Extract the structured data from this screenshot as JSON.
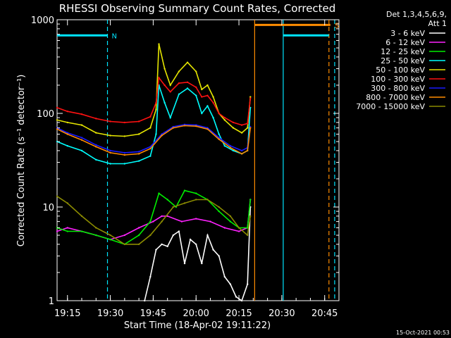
{
  "chart_data": {
    "type": "line",
    "title": "RHESSI Observing Summary Count Rates, Corrected",
    "xlabel": "Start Time (18-Apr-02 19:11:22)",
    "ylabel": "Corrected Count Rate (s⁻¹ detector⁻¹)",
    "yscale": "log",
    "ylim": [
      1,
      1000
    ],
    "xlim": [
      "19:11:22",
      "20:50:00"
    ],
    "x_ticks": [
      "19:15",
      "19:30",
      "19:45",
      "20:00",
      "20:15",
      "20:30",
      "20:45"
    ],
    "y_ticks": [
      "1",
      "10",
      "100",
      "1000"
    ],
    "footer": "15-Oct-2021 00:53",
    "legend": {
      "header": "Det 1,3,4,5,6,9,",
      "header2": "Att 1",
      "placement": "right"
    },
    "flags": [
      {
        "label": "N",
        "color": "#00e5ff",
        "start": "19:11:22",
        "end": "19:29:00",
        "level": 680
      },
      {
        "label": "S",
        "color": "#ff8c00",
        "start": "20:20:30",
        "end": "20:47:00",
        "level": 880
      },
      {
        "label": "",
        "color": "#00e5ff",
        "start": "20:30:30",
        "end": "20:46:30",
        "level": 680
      }
    ],
    "markers": [
      {
        "time": "19:29:00",
        "color": "#00e5ff",
        "style": "dashed"
      },
      {
        "time": "20:20:30",
        "color": "#ff8c00",
        "style": "solid"
      },
      {
        "time": "20:30:30",
        "color": "#00e5ff",
        "style": "solid"
      },
      {
        "time": "20:46:30",
        "color": "#ff8c00",
        "style": "dashed"
      },
      {
        "time": "20:48:30",
        "color": "#00e5ff",
        "style": "dashed"
      }
    ],
    "series": [
      {
        "name": "3 - 6 keV",
        "color": "#ffffff",
        "x": [
          "19:42",
          "19:44",
          "19:46",
          "19:48",
          "19:50",
          "19:52",
          "19:54",
          "19:56",
          "19:58",
          "20:00",
          "20:02",
          "20:04",
          "20:06",
          "20:08",
          "20:10",
          "20:12",
          "20:14",
          "20:16",
          "20:18",
          "20:19"
        ],
        "values": [
          1.0,
          1.8,
          3.5,
          4.0,
          3.8,
          5.0,
          5.5,
          2.5,
          4.5,
          4.0,
          2.5,
          5.0,
          3.5,
          3.0,
          1.8,
          1.5,
          1.1,
          1.0,
          1.5,
          10
        ]
      },
      {
        "name": "6 - 12 keV",
        "color": "#ff22ff",
        "x": [
          "19:11:22",
          "19:15",
          "19:20",
          "19:25",
          "19:30",
          "19:35",
          "19:40",
          "19:45",
          "19:48",
          "19:50",
          "19:55",
          "20:00",
          "20:05",
          "20:10",
          "20:15",
          "20:18",
          "20:19"
        ],
        "values": [
          5.5,
          6.0,
          5.5,
          5.0,
          4.5,
          5.0,
          6.0,
          7.0,
          8.0,
          8.0,
          7.0,
          7.5,
          7.0,
          6.0,
          5.5,
          6.0,
          12
        ]
      },
      {
        "name": "12 - 25 keV",
        "color": "#00ee00",
        "x": [
          "19:11:22",
          "19:15",
          "19:20",
          "19:25",
          "19:30",
          "19:35",
          "19:40",
          "19:44",
          "19:47",
          "19:50",
          "19:53",
          "19:56",
          "20:00",
          "20:04",
          "20:08",
          "20:12",
          "20:15",
          "20:18",
          "20:19"
        ],
        "values": [
          6.0,
          5.5,
          5.5,
          5.0,
          4.5,
          4.0,
          5.0,
          7.0,
          14,
          12,
          10,
          15,
          14,
          12,
          9,
          7,
          6,
          6,
          12
        ]
      },
      {
        "name": "25 - 50 keV",
        "color": "#00ffff",
        "x": [
          "19:11:22",
          "19:15",
          "19:20",
          "19:25",
          "19:30",
          "19:35",
          "19:40",
          "19:44",
          "19:46",
          "19:47",
          "19:49",
          "19:51",
          "19:54",
          "19:57",
          "20:00",
          "20:02",
          "20:04",
          "20:06",
          "20:08",
          "20:10",
          "20:13",
          "20:16",
          "20:18",
          "20:19"
        ],
        "values": [
          50,
          45,
          40,
          32,
          29,
          29,
          31,
          35,
          60,
          200,
          130,
          90,
          160,
          185,
          155,
          100,
          120,
          90,
          60,
          45,
          40,
          37,
          40,
          115
        ]
      },
      {
        "name": "50 - 100 keV",
        "color": "#e6e600",
        "x": [
          "19:11:22",
          "19:15",
          "19:20",
          "19:25",
          "19:30",
          "19:35",
          "19:40",
          "19:44",
          "19:46",
          "19:47",
          "19:49",
          "19:51",
          "19:54",
          "19:57",
          "20:00",
          "20:02",
          "20:04",
          "20:06",
          "20:08",
          "20:10",
          "20:13",
          "20:16",
          "20:18",
          "20:19"
        ],
        "values": [
          85,
          80,
          75,
          62,
          58,
          57,
          60,
          70,
          110,
          550,
          300,
          200,
          280,
          350,
          280,
          180,
          200,
          150,
          100,
          85,
          70,
          62,
          70,
          150
        ]
      },
      {
        "name": "100 - 300 keV",
        "color": "#ff1111",
        "x": [
          "19:11:22",
          "19:15",
          "19:20",
          "19:25",
          "19:30",
          "19:35",
          "19:40",
          "19:44",
          "19:46",
          "19:47",
          "19:49",
          "19:51",
          "19:54",
          "19:57",
          "20:00",
          "20:02",
          "20:04",
          "20:06",
          "20:08",
          "20:10",
          "20:13",
          "20:16",
          "20:18",
          "20:19"
        ],
        "values": [
          115,
          105,
          98,
          88,
          82,
          80,
          82,
          92,
          130,
          240,
          200,
          170,
          210,
          215,
          190,
          150,
          155,
          130,
          100,
          90,
          80,
          75,
          78,
          145
        ]
      },
      {
        "name": "300 - 800 keV",
        "color": "#1a1aff",
        "x": [
          "19:11:22",
          "19:15",
          "19:20",
          "19:25",
          "19:30",
          "19:35",
          "19:40",
          "19:44",
          "19:48",
          "19:52",
          "19:56",
          "20:00",
          "20:04",
          "20:08",
          "20:12",
          "20:16",
          "20:18",
          "20:19"
        ],
        "values": [
          70,
          62,
          55,
          46,
          40,
          38,
          39,
          44,
          60,
          72,
          76,
          75,
          70,
          55,
          45,
          40,
          43,
          72
        ]
      },
      {
        "name": "800 - 7000 keV",
        "color": "#ff8c00",
        "x": [
          "19:11:22",
          "19:15",
          "19:20",
          "19:25",
          "19:30",
          "19:35",
          "19:40",
          "19:44",
          "19:48",
          "19:52",
          "19:56",
          "20:00",
          "20:04",
          "20:08",
          "20:12",
          "20:16",
          "20:18",
          "20:19"
        ],
        "values": [
          68,
          60,
          52,
          44,
          38,
          36,
          37,
          42,
          58,
          70,
          74,
          73,
          68,
          53,
          43,
          37,
          40,
          70
        ]
      },
      {
        "name": "7000 - 15000 keV",
        "color": "#8b8b00",
        "x": [
          "19:11:22",
          "19:15",
          "19:20",
          "19:25",
          "19:30",
          "19:35",
          "19:40",
          "19:44",
          "19:48",
          "19:52",
          "19:56",
          "20:00",
          "20:04",
          "20:08",
          "20:12",
          "20:15",
          "20:18",
          "20:19"
        ],
        "values": [
          13,
          11,
          8,
          6,
          5,
          4,
          4,
          5,
          7,
          10,
          11,
          12,
          12,
          10,
          8,
          6,
          5,
          8
        ]
      }
    ]
  }
}
